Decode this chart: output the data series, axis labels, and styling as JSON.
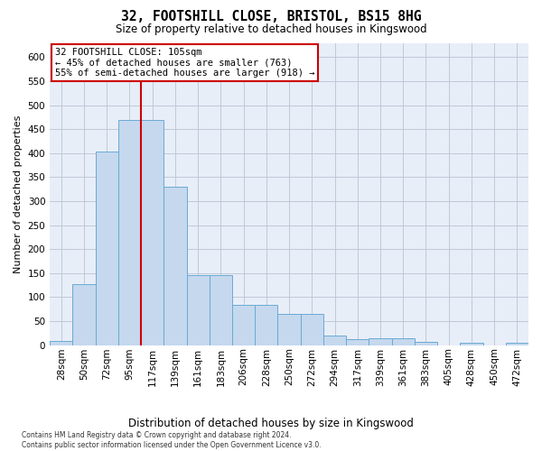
{
  "title": "32, FOOTSHILL CLOSE, BRISTOL, BS15 8HG",
  "subtitle": "Size of property relative to detached houses in Kingswood",
  "xlabel_bottom": "Distribution of detached houses by size in Kingswood",
  "ylabel": "Number of detached properties",
  "footnote": "Contains HM Land Registry data © Crown copyright and database right 2024.\nContains public sector information licensed under the Open Government Licence v3.0.",
  "bar_labels": [
    "28sqm",
    "50sqm",
    "72sqm",
    "95sqm",
    "117sqm",
    "139sqm",
    "161sqm",
    "183sqm",
    "206sqm",
    "228sqm",
    "250sqm",
    "272sqm",
    "294sqm",
    "317sqm",
    "339sqm",
    "361sqm",
    "383sqm",
    "405sqm",
    "428sqm",
    "450sqm",
    "472sqm"
  ],
  "bar_values": [
    8,
    128,
    403,
    470,
    470,
    330,
    145,
    145,
    83,
    83,
    65,
    65,
    20,
    13,
    15,
    15,
    6,
    0,
    4,
    0,
    4
  ],
  "bar_color": "#c5d8ee",
  "bar_edge_color": "#6aaad4",
  "vline_color": "#cc0000",
  "vline_index": 3.5,
  "annotation_text": "32 FOOTSHILL CLOSE: 105sqm\n← 45% of detached houses are smaller (763)\n55% of semi-detached houses are larger (918) →",
  "ylim_max": 630,
  "yticks": [
    0,
    50,
    100,
    150,
    200,
    250,
    300,
    350,
    400,
    450,
    500,
    550,
    600
  ],
  "bg_color": "#ffffff",
  "plot_bg_color": "#e8eef8",
  "grid_color": "#c0c8d8",
  "title_fontsize": 10.5,
  "subtitle_fontsize": 8.5,
  "ylabel_fontsize": 8,
  "tick_fontsize": 7.5,
  "annot_fontsize": 7.5,
  "footnote_fontsize": 5.5
}
